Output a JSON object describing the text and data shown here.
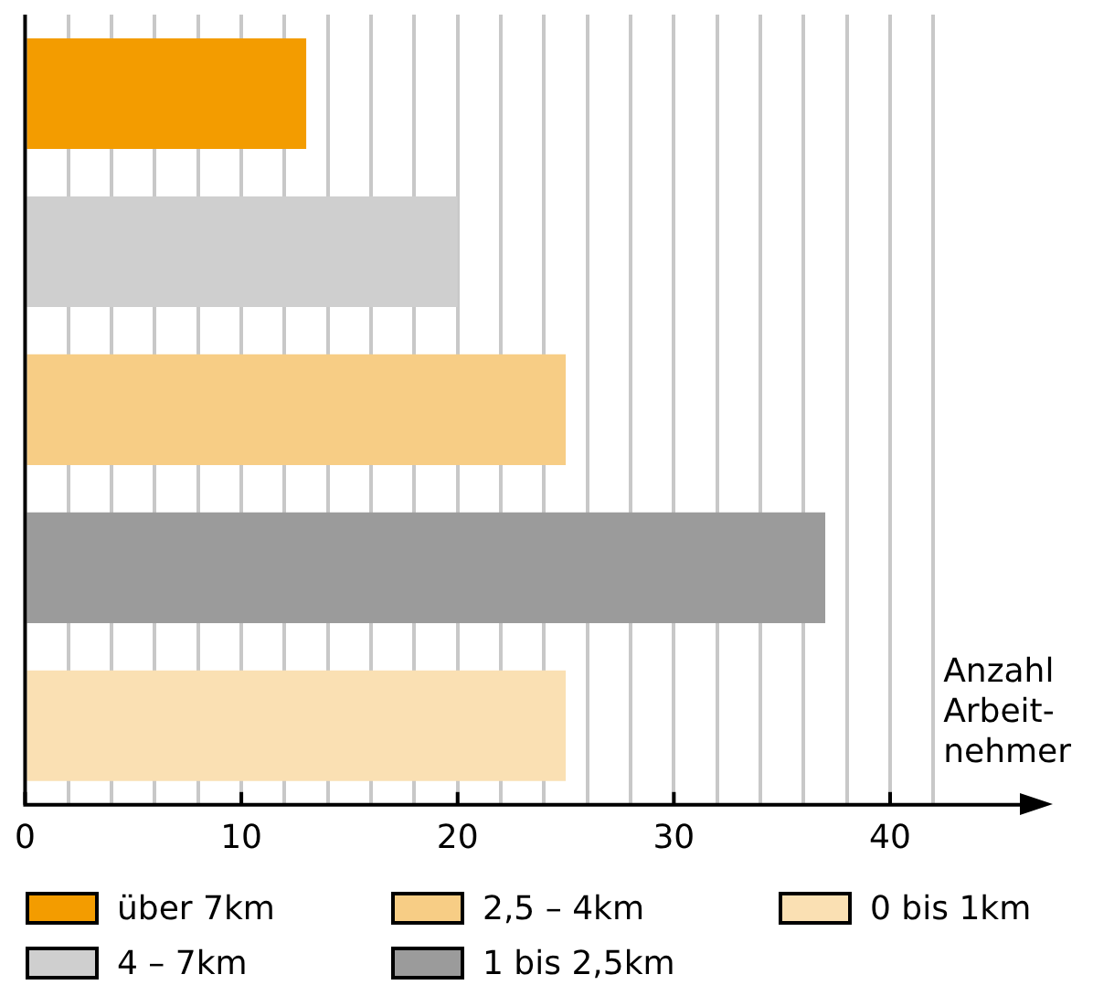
{
  "chart_data": {
    "type": "bar",
    "orientation": "horizontal",
    "stacked": true,
    "categories": [
      null,
      null,
      null,
      null,
      null
    ],
    "series": [
      {
        "name": "über 7km",
        "color": "#f39c00",
        "values": [
          13,
          null,
          null,
          null,
          null
        ]
      },
      {
        "name": "4 – 7km",
        "color": "#cfcfcf",
        "values": [
          null,
          20,
          null,
          null,
          null
        ]
      },
      {
        "name": "2,5 – 4km",
        "color": "#f7cd85",
        "values": [
          null,
          null,
          25,
          null,
          null
        ]
      },
      {
        "name": "1 bis 2,5km",
        "color": "#9b9b9b",
        "values": [
          null,
          null,
          null,
          37,
          null
        ]
      },
      {
        "name": "0 bis 1km",
        "color": "#fae0b3",
        "values": [
          null,
          null,
          null,
          null,
          25
        ]
      }
    ],
    "xlabel": "Anzahl\nArbeit-\nnehmer",
    "xlim": [
      0,
      46
    ],
    "xticks": [
      0,
      {
        "value": 2,
        "label": null
      },
      {
        "value": 4,
        "label": null
      },
      {
        "value": 6,
        "label": null
      },
      {
        "value": 8,
        "label": null
      },
      10,
      {
        "value": 12,
        "label": null
      },
      {
        "value": 14,
        "label": null
      },
      {
        "value": 16,
        "label": null
      },
      {
        "value": 18,
        "label": null
      },
      20,
      {
        "value": 22,
        "label": null
      },
      {
        "value": 24,
        "label": null
      },
      {
        "value": 26,
        "label": null
      },
      {
        "value": 28,
        "label": null
      },
      30,
      {
        "value": 32,
        "label": null
      },
      {
        "value": 34,
        "label": null
      },
      {
        "value": 36,
        "label": null
      },
      {
        "value": 38,
        "label": null
      },
      40,
      {
        "value": 42,
        "label": null
      }
    ],
    "grid": "x",
    "legend": "bottom"
  }
}
